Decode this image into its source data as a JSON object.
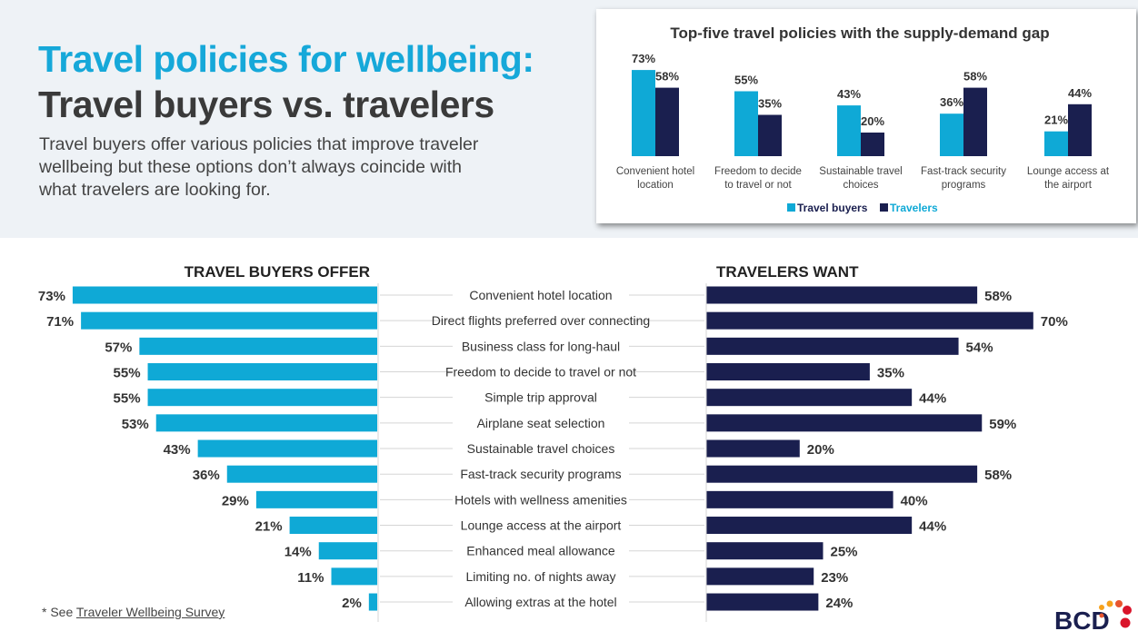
{
  "title_line1": "Travel policies for wellbeing:",
  "title_line2": "Travel buyers vs. travelers",
  "subtitle": "Travel buyers offer various policies that improve traveler wellbeing but these options don’t always coincide with what travelers are looking for.",
  "footnote_prefix": "* See ",
  "footnote_link": "Traveler Wellbeing Survey",
  "logo_text": "BCD",
  "colors": {
    "buyers": "#0fa9d6",
    "travelers": "#1a1f4f",
    "logo_dots": [
      "#f6a21d",
      "#e8552e",
      "#d9142a"
    ]
  },
  "chart_data": [
    {
      "type": "bar",
      "title": "Top-five travel policies with the supply-demand gap",
      "categories": [
        "Convenient hotel location",
        "Freedom to decide to travel or not",
        "Sustainable travel choices",
        "Fast-track security programs",
        "Lounge access at the airport"
      ],
      "category_lines": [
        [
          "Convenient hotel",
          "location"
        ],
        [
          "Freedom to decide",
          "to travel or not"
        ],
        [
          "Sustainable travel",
          "choices"
        ],
        [
          "Fast-track security",
          "programs"
        ],
        [
          "Lounge access at",
          "the airport"
        ]
      ],
      "series": [
        {
          "name": "Travel buyers",
          "values": [
            73,
            55,
            43,
            36,
            21
          ]
        },
        {
          "name": "Travelers",
          "values": [
            58,
            35,
            20,
            58,
            44
          ]
        }
      ],
      "legend": "bottom",
      "unit": "%"
    },
    {
      "type": "bar",
      "orientation": "horizontal-butterfly",
      "left_header": "TRAVEL BUYERS OFFER",
      "right_header": "TRAVELERS WANT",
      "categories": [
        "Convenient hotel location",
        "Direct flights preferred over connecting",
        "Business class for long-haul",
        "Freedom to decide to travel or not",
        "Simple trip approval",
        "Airplane seat selection",
        "Sustainable travel choices",
        "Fast-track security programs",
        "Hotels with wellness amenities",
        "Lounge access at the airport",
        "Enhanced meal allowance",
        "Limiting no. of nights away",
        "Allowing extras at the hotel"
      ],
      "series": [
        {
          "name": "TRAVEL BUYERS OFFER",
          "values": [
            73,
            71,
            57,
            55,
            55,
            53,
            43,
            36,
            29,
            21,
            14,
            11,
            2
          ]
        },
        {
          "name": "TRAVELERS WANT",
          "values": [
            58,
            70,
            54,
            35,
            44,
            59,
            20,
            58,
            40,
            44,
            25,
            23,
            24
          ]
        }
      ],
      "unit": "%"
    }
  ]
}
